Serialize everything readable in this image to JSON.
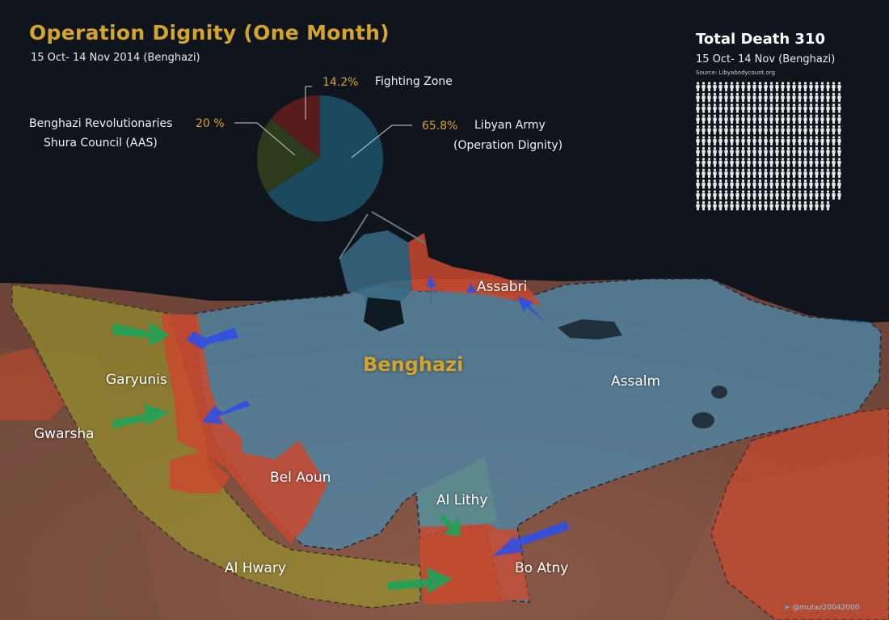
{
  "header": {
    "title": "Operation Dignity (One Month)",
    "subtitle": "15 Oct- 14 Nov 2014 (Benghazi)"
  },
  "pie": {
    "slices": [
      {
        "label": "Libyan Army (Operation Dignity)",
        "label_line1": "Libyan Army",
        "label_line2": "(Operation Dignity)",
        "percent_text": "65.8%",
        "value": 65.8,
        "color": "#1b4a5e"
      },
      {
        "label": "Benghazi Revolutionaries Shura Council (AAS)",
        "label_line1": "Benghazi Revolutionaries",
        "label_line2": "Shura Council (AAS)",
        "percent_text": "20 %",
        "value": 20,
        "color": "#2b3b1c"
      },
      {
        "label": "Fighting Zone",
        "label_line1": "Fighting Zone",
        "label_line2": "",
        "percent_text": "14.2%",
        "value": 14.2,
        "color": "#581c1c"
      }
    ]
  },
  "deaths": {
    "title": "Total Death 310",
    "period": "15 Oct- 14 Nov (Benghazi)",
    "source": "Source: Libyabodycount.org",
    "total": 310,
    "per_row": 26,
    "icon": "person-icon",
    "icon_color": "#e9e9e9"
  },
  "map": {
    "city_label": "Benghazi",
    "places": {
      "assabri": "Assabri",
      "assalm": "Assalm",
      "garyunis": "Garyunis",
      "gwarsha": "Gwarsha",
      "bel_aoun": "Bel Aoun",
      "al_lithy": "Al Lithy",
      "bo_atny": "Bo Atny",
      "al_hwary": "Al Hwary"
    },
    "legend_colors": {
      "army_zone": "#3f88ad",
      "fighting_zone": "#c9492e",
      "aas_zone": "#9a9a2c"
    },
    "arrow_colors": {
      "army": "#2f4fe6",
      "aas": "#1fa35a"
    }
  },
  "credit": {
    "handle": "@mutaz20042000",
    "icon": "twitter-icon"
  }
}
